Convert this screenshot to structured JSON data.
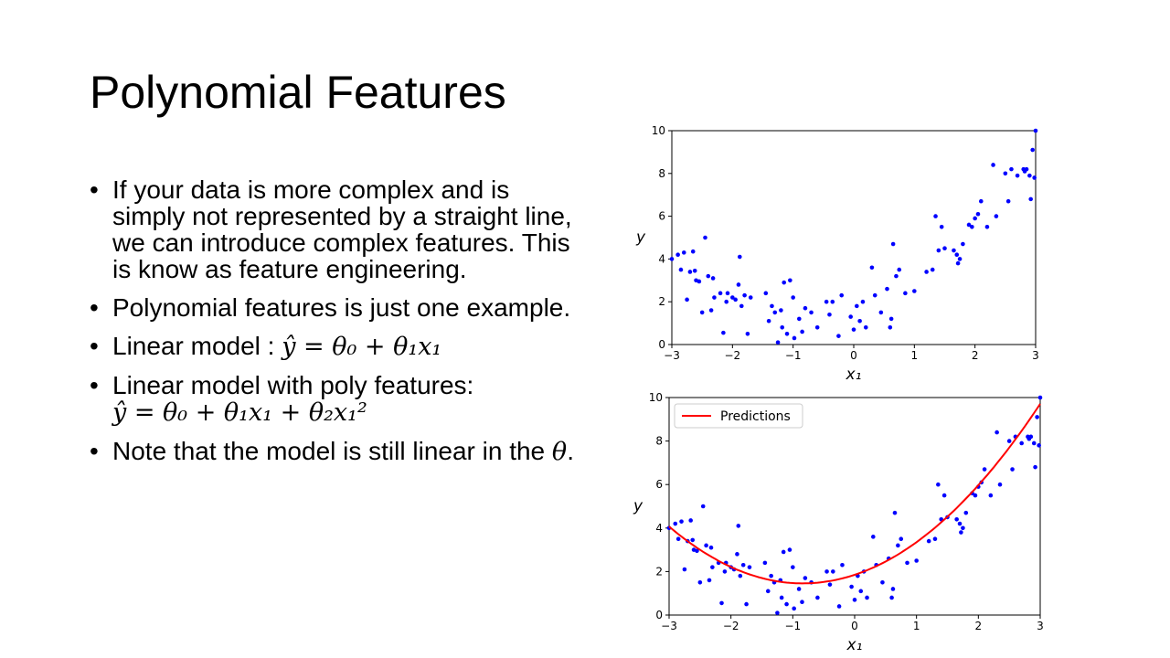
{
  "slide": {
    "title": "Polynomial Features",
    "bullets": {
      "b1": "If your data is more complex and is simply not represented by a straight line, we can introduce complex features. This is know as feature engineering.",
      "b2": "Polynomial features is just one example.",
      "b3_text": "Linear model : ",
      "b3_math": "ŷ = θ₀ + θ₁x₁",
      "b4_text": "Linear model with poly features:",
      "b4_math": "ŷ = θ₀ + θ₁x₁ + θ₂x₁²",
      "b5_text": "Note that the model is still linear in the ",
      "b5_math": "θ",
      "b5_end": "."
    }
  },
  "chart_data": [
    {
      "type": "scatter",
      "xlabel": "x₁",
      "ylabel": "y",
      "xlim": [
        -3,
        3
      ],
      "ylim": [
        0,
        10
      ],
      "xticks": [
        -3,
        -2,
        -1,
        0,
        1,
        2,
        3
      ],
      "yticks": [
        0,
        2,
        4,
        6,
        8,
        10
      ],
      "xtick_labels": [
        "−3",
        "−2",
        "−1",
        "0",
        "1",
        "2",
        "3"
      ],
      "ytick_labels": [
        "0",
        "2",
        "4",
        "6",
        "8",
        "10"
      ],
      "marker_color": "#0000ff",
      "points": [
        [
          -3.0,
          4.0
        ],
        [
          -2.9,
          4.2
        ],
        [
          -2.85,
          3.5
        ],
        [
          -2.8,
          4.3
        ],
        [
          -2.75,
          2.1
        ],
        [
          -2.7,
          3.4
        ],
        [
          -2.65,
          4.35
        ],
        [
          -2.62,
          3.45
        ],
        [
          -2.6,
          3.0
        ],
        [
          -2.55,
          2.95
        ],
        [
          -2.5,
          1.5
        ],
        [
          -2.45,
          5.0
        ],
        [
          -2.4,
          3.2
        ],
        [
          -2.35,
          1.6
        ],
        [
          -2.32,
          3.1
        ],
        [
          -2.3,
          2.2
        ],
        [
          -2.2,
          2.4
        ],
        [
          -2.15,
          0.55
        ],
        [
          -2.1,
          2.0
        ],
        [
          -2.08,
          2.4
        ],
        [
          -2.0,
          2.2
        ],
        [
          -1.95,
          2.1
        ],
        [
          -1.9,
          2.8
        ],
        [
          -1.88,
          4.1
        ],
        [
          -1.85,
          1.8
        ],
        [
          -1.8,
          2.3
        ],
        [
          -1.75,
          0.5
        ],
        [
          -1.7,
          2.2
        ],
        [
          -1.45,
          2.4
        ],
        [
          -1.4,
          1.1
        ],
        [
          -1.35,
          1.8
        ],
        [
          -1.3,
          1.5
        ],
        [
          -1.25,
          0.1
        ],
        [
          -1.2,
          1.6
        ],
        [
          -1.18,
          0.8
        ],
        [
          -1.15,
          2.9
        ],
        [
          -1.1,
          0.5
        ],
        [
          -1.05,
          3.0
        ],
        [
          -1.0,
          2.2
        ],
        [
          -0.98,
          0.3
        ],
        [
          -0.9,
          1.2
        ],
        [
          -0.85,
          0.6
        ],
        [
          -0.8,
          1.7
        ],
        [
          -0.7,
          1.5
        ],
        [
          -0.6,
          0.8
        ],
        [
          -0.45,
          2.0
        ],
        [
          -0.4,
          1.4
        ],
        [
          -0.35,
          2.0
        ],
        [
          -0.25,
          0.4
        ],
        [
          -0.2,
          2.3
        ],
        [
          -0.05,
          1.3
        ],
        [
          0.0,
          0.7
        ],
        [
          0.05,
          1.8
        ],
        [
          0.1,
          1.1
        ],
        [
          0.15,
          2.0
        ],
        [
          0.2,
          0.8
        ],
        [
          0.3,
          3.6
        ],
        [
          0.35,
          2.3
        ],
        [
          0.45,
          1.5
        ],
        [
          0.55,
          2.6
        ],
        [
          0.6,
          0.8
        ],
        [
          0.62,
          1.2
        ],
        [
          0.65,
          4.7
        ],
        [
          0.7,
          3.2
        ],
        [
          0.75,
          3.5
        ],
        [
          0.85,
          2.4
        ],
        [
          1.0,
          2.5
        ],
        [
          1.2,
          3.4
        ],
        [
          1.3,
          3.5
        ],
        [
          1.35,
          6.0
        ],
        [
          1.4,
          4.4
        ],
        [
          1.45,
          5.5
        ],
        [
          1.5,
          4.5
        ],
        [
          1.65,
          4.4
        ],
        [
          1.7,
          4.2
        ],
        [
          1.72,
          3.8
        ],
        [
          1.75,
          4.0
        ],
        [
          1.8,
          4.7
        ],
        [
          1.9,
          5.6
        ],
        [
          1.95,
          5.5
        ],
        [
          2.0,
          5.9
        ],
        [
          2.05,
          6.1
        ],
        [
          2.1,
          6.7
        ],
        [
          2.2,
          5.5
        ],
        [
          2.3,
          8.4
        ],
        [
          2.35,
          6.0
        ],
        [
          2.5,
          8.0
        ],
        [
          2.55,
          6.7
        ],
        [
          2.6,
          8.2
        ],
        [
          2.7,
          7.9
        ],
        [
          2.8,
          8.2
        ],
        [
          2.82,
          8.1
        ],
        [
          2.85,
          8.2
        ],
        [
          2.9,
          7.9
        ],
        [
          2.92,
          6.8
        ],
        [
          2.95,
          9.1
        ],
        [
          2.98,
          7.8
        ],
        [
          3.0,
          10.0
        ]
      ]
    },
    {
      "type": "scatter",
      "xlabel": "x₁",
      "ylabel": "y",
      "xlim": [
        -3,
        3
      ],
      "ylim": [
        0,
        10
      ],
      "xticks": [
        -3,
        -2,
        -1,
        0,
        1,
        2,
        3
      ],
      "yticks": [
        0,
        2,
        4,
        6,
        8,
        10
      ],
      "xtick_labels": [
        "−3",
        "−2",
        "−1",
        "0",
        "1",
        "2",
        "3"
      ],
      "ytick_labels": [
        "0",
        "2",
        "4",
        "6",
        "8",
        "10"
      ],
      "marker_color": "#0000ff",
      "legend": {
        "label": "Predictions",
        "placement": "top-left"
      },
      "curve_color": "#ff0000",
      "curve": {
        "type": "quadratic",
        "theta0": 1.85,
        "theta1": 0.94,
        "theta2": 0.56
      },
      "points": "same as chart 1"
    }
  ]
}
